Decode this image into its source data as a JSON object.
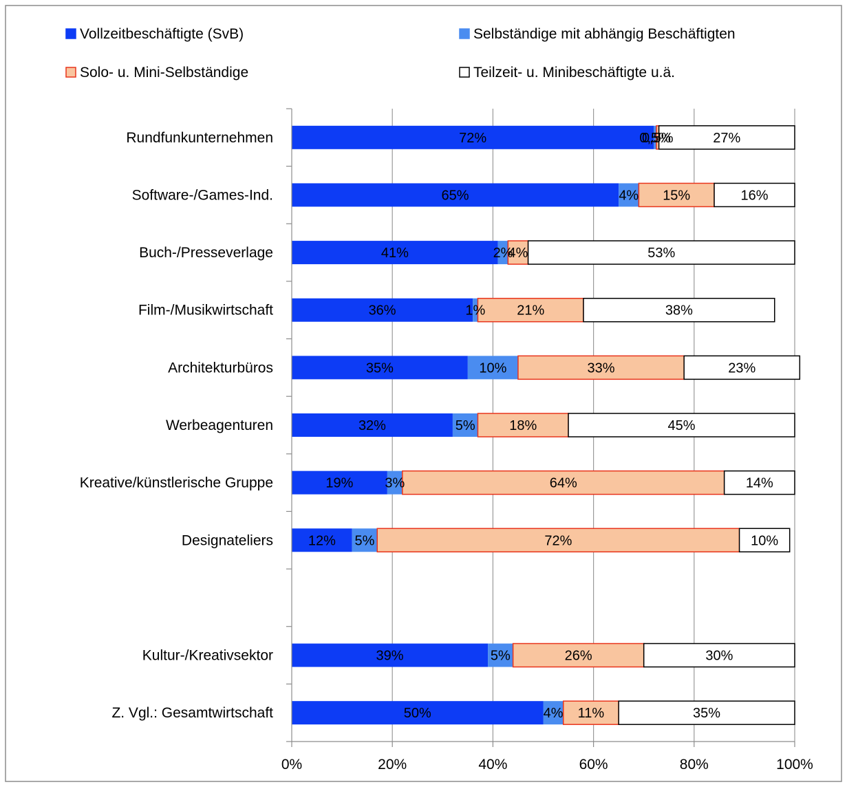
{
  "chart_data": {
    "type": "bar",
    "orientation": "horizontal",
    "stacked": "percent",
    "legend_position": "top",
    "grid": true,
    "xlim": [
      0,
      100
    ],
    "x_tick_labels": [
      "0%",
      "20%",
      "40%",
      "60%",
      "80%",
      "100%"
    ],
    "colors": {
      "vollzeit": "#0d3cf5",
      "selbstaendige": "#4a8cf0",
      "solo": "#f9c59f",
      "solo_border": "#e8341c",
      "teilzeit": "#ffffff",
      "teilzeit_border": "#000000",
      "grid": "#9a9a9a"
    },
    "legend": [
      {
        "label": "Vollzeitbeschäftigte (SvB)",
        "color": "#0d3cf5",
        "border": "#0d3cf5"
      },
      {
        "label": "Selbständige mit  abhängig Beschäftigten",
        "color": "#4a8cf0",
        "border": "#4a8cf0"
      },
      {
        "label": "Solo- u. Mini-Selbständige",
        "color": "#f9c59f",
        "border": "#e8341c"
      },
      {
        "label": "Teilzeit- u. Minibeschäftigte u.ä.",
        "color": "#ffffff",
        "border": "#000000"
      }
    ],
    "categories": [
      "Rundfunkunternehmen",
      "Software-/Games-Ind.",
      "Buch-/Presseverlage",
      "Film-/Musikwirtschaft",
      "Architekturbüros",
      "Werbeagenturen",
      "Kreative/künstlerische Gruppe",
      "Designateliers",
      "",
      "Kultur-/Kreativsektor",
      "Z. Vgl.: Gesamtwirtschaft"
    ],
    "series": [
      {
        "name": "Vollzeitbeschäftigte (SvB)",
        "values": [
          72,
          65,
          41,
          36,
          35,
          32,
          19,
          12,
          null,
          39,
          50
        ],
        "labels": [
          "72%",
          "65%",
          "41%",
          "36%",
          "35%",
          "32%",
          "19%",
          "12%",
          "",
          "39%",
          "50%"
        ]
      },
      {
        "name": "Selbständige mit  abhängig Beschäftigten",
        "values": [
          0.5,
          4,
          2,
          1,
          10,
          5,
          3,
          5,
          null,
          5,
          4
        ],
        "labels": [
          "0,5%",
          "4%",
          "2%",
          "1%",
          "10%",
          "5%",
          "3%",
          "5%",
          "",
          "5%",
          "4%"
        ]
      },
      {
        "name": "Solo- u. Mini-Selbständige",
        "values": [
          0.5,
          15,
          4,
          21,
          33,
          18,
          64,
          72,
          null,
          26,
          11
        ],
        "labels": [
          "0,5%",
          "15%",
          "4%",
          "21%",
          "33%",
          "18%",
          "64%",
          "72%",
          "",
          "26%",
          "11%"
        ]
      },
      {
        "name": "Teilzeit- u. Minibeschäftigte u.ä.",
        "values": [
          27,
          16,
          53,
          38,
          23,
          45,
          14,
          10,
          null,
          30,
          35
        ],
        "labels": [
          "27%",
          "16%",
          "53%",
          "38%",
          "23%",
          "45%",
          "14%",
          "10%",
          "",
          "30%",
          "35%"
        ]
      }
    ]
  }
}
